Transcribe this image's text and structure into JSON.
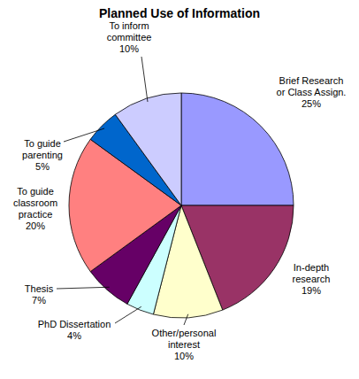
{
  "chart_data": {
    "type": "pie",
    "title": "Planned Use of Information",
    "categories": [
      "Brief Research or Class Assign.",
      "In-depth research",
      "Other/personal interest",
      "PhD Dissertation",
      "Thesis",
      "To guide classroom practice",
      "To guide parenting",
      "To inform committee"
    ],
    "values": [
      25,
      19,
      10,
      4,
      7,
      20,
      5,
      10
    ],
    "value_labels": [
      "25%",
      "19%",
      "10%",
      "4%",
      "7%",
      "20%",
      "5%",
      "10%"
    ],
    "colors": [
      "#9999ff",
      "#993366",
      "#ffffcc",
      "#ccffff",
      "#660066",
      "#ff8080",
      "#0066cc",
      "#ccccff"
    ],
    "data_labels": true
  }
}
